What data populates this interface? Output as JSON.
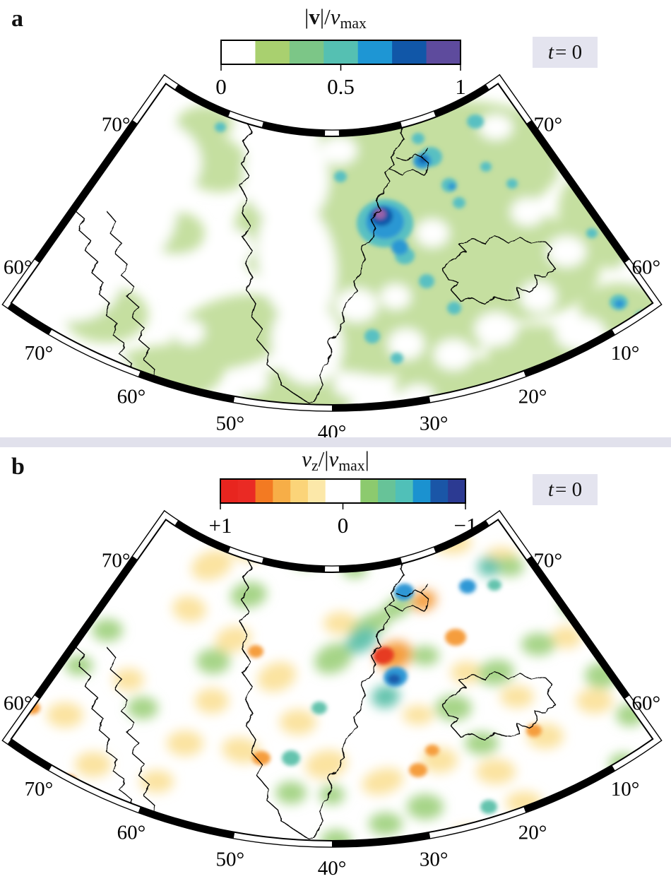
{
  "figure_labels": {
    "panel_a": "a",
    "panel_b": "b"
  },
  "badge": {
    "var": "t",
    "rest": " = 0"
  },
  "divider_color": "#e1e1ec",
  "badge_bg": "#e4e4ef",
  "colorbar_a": {
    "title": {
      "bar1": "|",
      "v": "v",
      "bar2": "|/",
      "v2": "v",
      "sub": "max"
    },
    "tick_labels": [
      "0",
      "0.5",
      "1"
    ],
    "tick_positions": [
      0,
      0.5,
      1
    ],
    "colors": [
      "#ffffff",
      "#a9d06f",
      "#7cc687",
      "#55c0b2",
      "#1e96d4",
      "#1157a8",
      "#5e4b9d"
    ],
    "widths": [
      1,
      1,
      1,
      1,
      1,
      1,
      1
    ]
  },
  "colorbar_b": {
    "title": {
      "v": "v",
      "sub1": "z",
      "mid": "/|",
      "v2": "v",
      "sub2": "max",
      "bar": "|"
    },
    "tick_labels": [
      "+1",
      "0",
      "−1"
    ],
    "tick_positions": [
      0,
      0.5,
      1
    ],
    "colors": [
      "#e8251f",
      "#ea2a24",
      "#f37a22",
      "#f7ae47",
      "#fbd479",
      "#fce8a9",
      "#ffffff",
      "#8cca6e",
      "#67c398",
      "#50c0b8",
      "#1b92d0",
      "#1a56a7",
      "#2c3a92"
    ],
    "widths": [
      1,
      1,
      1,
      1,
      1,
      1,
      2,
      1,
      1,
      1,
      1,
      1,
      1
    ]
  },
  "map_labels": {
    "left": [
      "70°",
      "60°"
    ],
    "right": [
      "70°",
      "60°"
    ],
    "bottom": [
      "70°",
      "60°",
      "50°",
      "40°",
      "30°",
      "20°",
      "10°"
    ]
  },
  "field_colors": {
    "a": {
      "g": "#c5dfa0",
      "w": "#ffffff",
      "t": "#58c0c2",
      "b": "#2a97d3",
      "d": "#1157a8",
      "p": "#9a62a8"
    },
    "b": {
      "y": "#fbe3a0",
      "g": "#a6d487",
      "t": "#63c3ad",
      "o": "#f59d3d",
      "r": "#e63a24",
      "b": "#2e97d5",
      "n": "#1b5cab",
      "w": "#ffffff"
    }
  },
  "field_blobs": {
    "a_soft": [
      [
        610,
        240,
        190,
        95,
        -8,
        "g"
      ],
      [
        480,
        330,
        150,
        95,
        0,
        "g"
      ],
      [
        680,
        370,
        170,
        85,
        5,
        "g"
      ],
      [
        560,
        455,
        150,
        75,
        -5,
        "g"
      ],
      [
        330,
        470,
        90,
        50,
        -15,
        "g"
      ],
      [
        220,
        535,
        100,
        45,
        -10,
        "g"
      ],
      [
        150,
        445,
        60,
        40,
        0,
        "g"
      ],
      [
        300,
        230,
        55,
        40,
        20,
        "g"
      ],
      [
        790,
        200,
        80,
        50,
        0,
        "g"
      ],
      [
        870,
        300,
        80,
        80,
        0,
        "g"
      ],
      [
        880,
        440,
        60,
        40,
        0,
        "g"
      ],
      [
        420,
        560,
        80,
        40,
        0,
        "g"
      ],
      [
        650,
        545,
        90,
        40,
        0,
        "g"
      ],
      [
        760,
        500,
        70,
        40,
        0,
        "g"
      ],
      [
        290,
        175,
        40,
        25,
        0,
        "g"
      ],
      [
        520,
        185,
        70,
        35,
        0,
        "g"
      ],
      [
        250,
        330,
        40,
        30,
        0,
        "g"
      ],
      [
        100,
        560,
        60,
        35,
        0,
        "g"
      ],
      [
        405,
        250,
        60,
        70,
        -15,
        "w"
      ],
      [
        420,
        370,
        55,
        90,
        -10,
        "w"
      ],
      [
        435,
        485,
        50,
        60,
        -15,
        "w"
      ],
      [
        140,
        300,
        110,
        90,
        0,
        "w"
      ],
      [
        215,
        230,
        70,
        60,
        0,
        "w"
      ],
      [
        100,
        400,
        70,
        55,
        0,
        "w"
      ],
      [
        262,
        390,
        34,
        28,
        0,
        "w"
      ],
      [
        330,
        350,
        30,
        25,
        0,
        "w"
      ],
      [
        505,
        432,
        30,
        24,
        0,
        "w"
      ],
      [
        575,
        487,
        26,
        22,
        0,
        "w"
      ],
      [
        642,
        502,
        28,
        22,
        0,
        "w"
      ],
      [
        702,
        466,
        30,
        24,
        0,
        "w"
      ],
      [
        762,
        420,
        26,
        22,
        0,
        "w"
      ],
      [
        802,
        356,
        28,
        22,
        0,
        "w"
      ],
      [
        747,
        300,
        24,
        20,
        0,
        "w"
      ],
      [
        816,
        236,
        26,
        20,
        0,
        "w"
      ],
      [
        702,
        180,
        24,
        18,
        0,
        "w"
      ],
      [
        480,
        213,
        26,
        20,
        0,
        "w"
      ],
      [
        612,
        330,
        24,
        20,
        0,
        "w"
      ],
      [
        560,
        420,
        22,
        18,
        0,
        "w"
      ],
      [
        500,
        545,
        28,
        18,
        0,
        "w"
      ],
      [
        352,
        540,
        28,
        18,
        0,
        "w"
      ],
      [
        150,
        522,
        36,
        22,
        0,
        "w"
      ],
      [
        62,
        472,
        28,
        20,
        0,
        "w"
      ],
      [
        900,
        382,
        22,
        18,
        0,
        "w"
      ],
      [
        822,
        472,
        36,
        24,
        0,
        "w"
      ],
      [
        592,
        560,
        24,
        16,
        0,
        "w"
      ],
      [
        875,
        200,
        24,
        18,
        0,
        "w"
      ],
      [
        268,
        470,
        22,
        18,
        0,
        "w"
      ]
    ],
    "a_spots": [
      [
        610,
        222,
        16,
        14,
        0,
        "t"
      ],
      [
        673,
        172,
        12,
        10,
        0,
        "t"
      ],
      [
        636,
        262,
        11,
        10,
        0,
        "t"
      ],
      [
        650,
        287,
        9,
        8,
        0,
        "t"
      ],
      [
        688,
        236,
        8,
        7,
        0,
        "t"
      ],
      [
        592,
        196,
        9,
        8,
        0,
        "t"
      ],
      [
        545,
        316,
        40,
        34,
        0,
        "t"
      ],
      [
        573,
        362,
        14,
        12,
        0,
        "t"
      ],
      [
        604,
        398,
        11,
        10,
        0,
        "t"
      ],
      [
        643,
        436,
        10,
        9,
        0,
        "t"
      ],
      [
        876,
        428,
        13,
        11,
        0,
        "t"
      ],
      [
        908,
        448,
        9,
        8,
        0,
        "t"
      ],
      [
        482,
        250,
        9,
        8,
        0,
        "t"
      ],
      [
        312,
        180,
        8,
        7,
        0,
        "t"
      ],
      [
        527,
        476,
        11,
        10,
        0,
        "t"
      ],
      [
        562,
        507,
        9,
        8,
        0,
        "t"
      ],
      [
        725,
        260,
        8,
        7,
        0,
        "t"
      ],
      [
        838,
        330,
        8,
        7,
        0,
        "t"
      ],
      [
        598,
        228,
        13,
        11,
        0,
        "b"
      ],
      [
        545,
        314,
        27,
        24,
        0,
        "b"
      ],
      [
        566,
        350,
        12,
        11,
        0,
        "b"
      ],
      [
        640,
        264,
        6,
        5,
        0,
        "b"
      ],
      [
        877,
        430,
        7,
        6,
        0,
        "b"
      ],
      [
        540,
        306,
        16,
        14,
        0,
        "d"
      ],
      [
        599,
        226,
        6,
        5,
        0,
        "d"
      ],
      [
        538,
        303,
        8,
        7,
        0,
        "p"
      ]
    ],
    "b_soft": [
      [
        300,
        800,
        30,
        20,
        -20,
        "y"
      ],
      [
        355,
        778,
        26,
        16,
        -5,
        "y"
      ],
      [
        432,
        772,
        30,
        16,
        0,
        "y"
      ],
      [
        560,
        765,
        26,
        14,
        0,
        "y"
      ],
      [
        640,
        768,
        28,
        16,
        0,
        "y"
      ],
      [
        710,
        790,
        24,
        16,
        0,
        "y"
      ],
      [
        820,
        815,
        26,
        18,
        0,
        "y"
      ],
      [
        868,
        862,
        22,
        16,
        0,
        "y"
      ],
      [
        268,
        862,
        24,
        18,
        10,
        "y"
      ],
      [
        330,
        905,
        26,
        18,
        -15,
        "y"
      ],
      [
        392,
        958,
        28,
        20,
        -20,
        "y"
      ],
      [
        300,
        992,
        24,
        18,
        0,
        "y"
      ],
      [
        262,
        1052,
        26,
        18,
        0,
        "y"
      ],
      [
        342,
        1062,
        28,
        18,
        10,
        "y"
      ],
      [
        422,
        1022,
        26,
        18,
        0,
        "y"
      ],
      [
        462,
        1082,
        30,
        20,
        -10,
        "y"
      ],
      [
        542,
        1106,
        30,
        18,
        -15,
        "y"
      ],
      [
        622,
        1076,
        26,
        18,
        0,
        "y"
      ],
      [
        702,
        1092,
        28,
        18,
        0,
        "y"
      ],
      [
        772,
        1042,
        26,
        18,
        0,
        "y"
      ],
      [
        842,
        992,
        26,
        18,
        0,
        "y"
      ],
      [
        882,
        932,
        22,
        16,
        0,
        "y"
      ],
      [
        482,
        882,
        24,
        16,
        0,
        "y"
      ],
      [
        660,
        952,
        22,
        16,
        0,
        "y"
      ],
      [
        732,
        986,
        24,
        16,
        0,
        "y"
      ],
      [
        802,
        902,
        22,
        16,
        0,
        "y"
      ],
      [
        92,
        1012,
        26,
        18,
        0,
        "y"
      ],
      [
        132,
        1082,
        26,
        18,
        0,
        "y"
      ],
      [
        182,
        962,
        22,
        16,
        0,
        "y"
      ],
      [
        222,
        1106,
        24,
        16,
        0,
        "y"
      ],
      [
        592,
        1012,
        22,
        14,
        0,
        "y"
      ],
      [
        662,
        1186,
        24,
        16,
        0,
        "y"
      ],
      [
        742,
        1136,
        26,
        16,
        0,
        "y"
      ],
      [
        352,
        842,
        26,
        18,
        -10,
        "g"
      ],
      [
        302,
        936,
        24,
        18,
        0,
        "g"
      ],
      [
        472,
        932,
        28,
        20,
        -25,
        "g"
      ],
      [
        524,
        886,
        32,
        16,
        -30,
        "g"
      ],
      [
        562,
        860,
        24,
        14,
        -30,
        "g"
      ],
      [
        642,
        1002,
        26,
        18,
        0,
        "g"
      ],
      [
        702,
        952,
        26,
        18,
        -10,
        "g"
      ],
      [
        762,
        912,
        24,
        16,
        0,
        "g"
      ],
      [
        814,
        856,
        22,
        16,
        0,
        "g"
      ],
      [
        852,
        956,
        24,
        18,
        0,
        "g"
      ],
      [
        892,
        1012,
        20,
        16,
        0,
        "g"
      ],
      [
        602,
        1142,
        26,
        18,
        0,
        "g"
      ],
      [
        546,
        1166,
        24,
        16,
        0,
        "g"
      ],
      [
        476,
        1190,
        22,
        16,
        0,
        "g"
      ],
      [
        412,
        1122,
        22,
        16,
        0,
        "g"
      ],
      [
        682,
        1052,
        24,
        16,
        0,
        "g"
      ],
      [
        152,
        892,
        22,
        16,
        0,
        "g"
      ],
      [
        112,
        942,
        20,
        14,
        0,
        "g"
      ],
      [
        202,
        1002,
        22,
        16,
        0,
        "g"
      ],
      [
        432,
        792,
        20,
        12,
        0,
        "g"
      ],
      [
        502,
        806,
        18,
        12,
        0,
        "g"
      ],
      [
        722,
        802,
        20,
        14,
        0,
        "g"
      ],
      [
        882,
        1082,
        20,
        16,
        0,
        "g"
      ],
      [
        602,
        928,
        20,
        14,
        0,
        "g"
      ],
      [
        470,
        1125,
        18,
        14,
        0,
        "g"
      ],
      [
        512,
        906,
        24,
        16,
        -30,
        "t"
      ],
      [
        546,
        986,
        20,
        16,
        -10,
        "t"
      ],
      [
        692,
        802,
        16,
        14,
        0,
        "t"
      ],
      [
        558,
        928,
        26,
        20,
        -20,
        "o"
      ],
      [
        600,
        850,
        18,
        14,
        -20,
        "o"
      ]
    ],
    "b_spots": [
      [
        645,
        902,
        15,
        12,
        0,
        "o"
      ],
      [
        362,
        922,
        11,
        9,
        0,
        "o"
      ],
      [
        756,
        1034,
        11,
        9,
        0,
        "o"
      ],
      [
        592,
        1090,
        13,
        10,
        0,
        "o"
      ],
      [
        370,
        1073,
        13,
        10,
        0,
        "o"
      ],
      [
        96,
        1106,
        13,
        10,
        0,
        "o"
      ],
      [
        46,
        1002,
        11,
        9,
        0,
        "o"
      ],
      [
        612,
        1062,
        10,
        8,
        0,
        "o"
      ],
      [
        572,
        838,
        14,
        12,
        -10,
        "b"
      ],
      [
        662,
        830,
        12,
        10,
        0,
        "b"
      ],
      [
        560,
        958,
        17,
        14,
        -10,
        "b"
      ],
      [
        700,
        828,
        10,
        8,
        0,
        "t"
      ],
      [
        412,
        1073,
        13,
        11,
        0,
        "t"
      ],
      [
        692,
        1142,
        12,
        10,
        0,
        "t"
      ],
      [
        452,
        1002,
        11,
        9,
        0,
        "t"
      ],
      [
        558,
        961,
        9,
        7,
        0,
        "n"
      ],
      [
        543,
        928,
        15,
        12,
        -15,
        "r"
      ]
    ]
  }
}
